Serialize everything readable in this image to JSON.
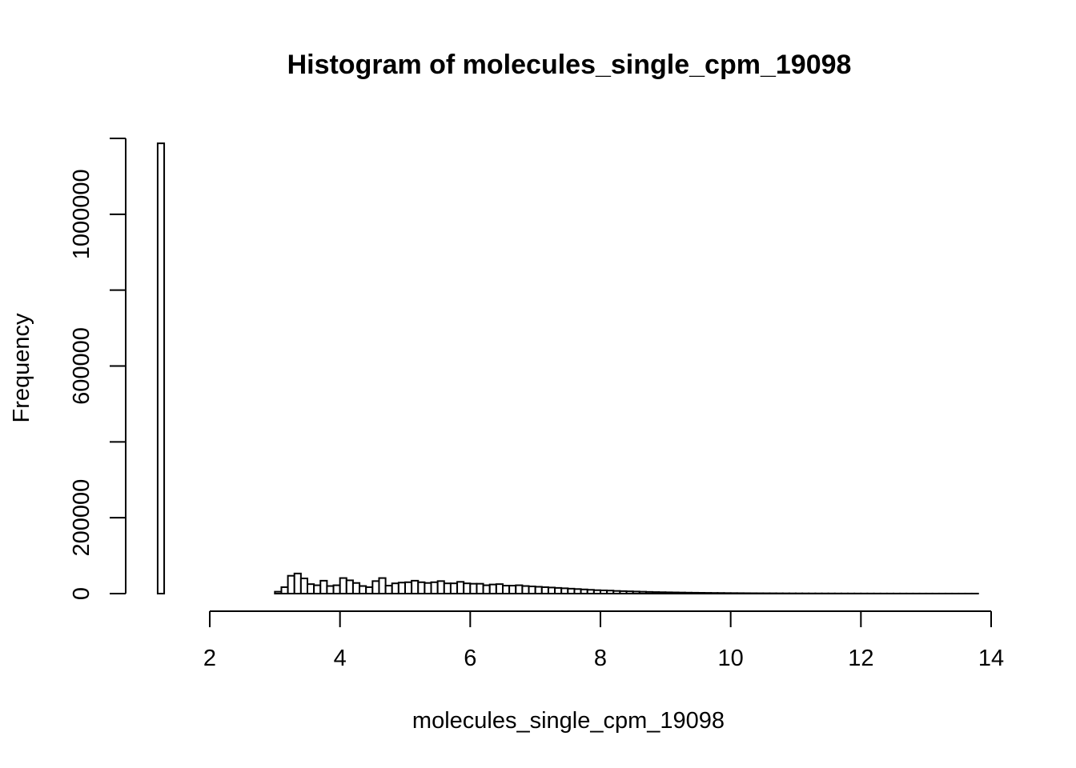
{
  "chart_data": {
    "type": "bar",
    "title": "Histogram of molecules_single_cpm_19098",
    "xlabel": "molecules_single_cpm_19098",
    "ylabel": "Frequency",
    "xlim": [
      0.8,
      14
    ],
    "ylim": [
      0,
      1200000
    ],
    "x_ticks": [
      2,
      4,
      6,
      8,
      10,
      12,
      14
    ],
    "y_ticks": [
      0,
      200000,
      400000,
      600000,
      800000,
      1000000,
      1200000
    ],
    "y_tick_labels": [
      "0",
      "200000",
      "",
      "600000",
      "",
      "1000000",
      ""
    ],
    "bin_width": 0.1,
    "bin_start": 1.2,
    "values": [
      1187000,
      0,
      0,
      0,
      0,
      0,
      0,
      0,
      0,
      0,
      0,
      0,
      0,
      0,
      0,
      0,
      0,
      0,
      5000,
      17000,
      47000,
      53000,
      40000,
      25000,
      22000,
      34000,
      20000,
      22000,
      41000,
      35000,
      28000,
      20000,
      17000,
      33000,
      41000,
      21000,
      27000,
      29000,
      30000,
      34000,
      30000,
      28000,
      30000,
      33000,
      27000,
      27000,
      31000,
      27000,
      26000,
      26000,
      22000,
      24000,
      25000,
      21000,
      21000,
      22000,
      20000,
      19000,
      18000,
      17000,
      16000,
      15000,
      14000,
      13000,
      12000,
      11000,
      10000,
      9000,
      8500,
      8000,
      7000,
      6500,
      6000,
      5500,
      5000,
      4500,
      4000,
      3700,
      3400,
      3100,
      2800,
      2500,
      2300,
      2100,
      1900,
      1700,
      1600,
      1400,
      1300,
      1200,
      1100,
      1000,
      900,
      850,
      800,
      700,
      650,
      600,
      550,
      500,
      450,
      420,
      400,
      370,
      340,
      310,
      290,
      270,
      250,
      230,
      210,
      200,
      180,
      170,
      160,
      150,
      140,
      130,
      120,
      110,
      100,
      95,
      90,
      85,
      80,
      75
    ]
  }
}
